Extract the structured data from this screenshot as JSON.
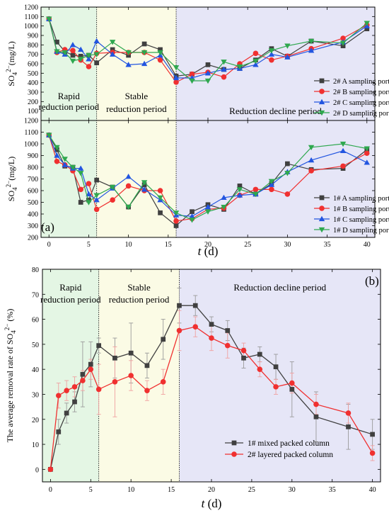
{
  "figure": {
    "a_label": "(a)",
    "b_label": "(b)"
  },
  "chart_data": [
    {
      "id": "top-2",
      "type": "line",
      "ylabel": "SO4 2−(mg/L)",
      "ylim": [
        0,
        1200
      ],
      "ytick_step": 100,
      "xlim": [
        -1,
        41
      ],
      "xticks": [
        0,
        5,
        10,
        15,
        20,
        25,
        30,
        35,
        40
      ],
      "x_tick_labels_shown": false,
      "periods": [
        {
          "label_lines": [
            "Rapid",
            "reduction period"
          ],
          "from": -1,
          "to": 6,
          "color": "#e4f6e4"
        },
        {
          "label_lines": [
            "Stable",
            "reduction period"
          ],
          "from": 6,
          "to": 16,
          "color": "#fbfbe5"
        },
        {
          "label_lines": [
            "Reduction decline period"
          ],
          "from": 16,
          "to": 41,
          "color": "#e6e6f7"
        }
      ],
      "legend_position": "bottom-right",
      "x": [
        0,
        1,
        2,
        3,
        4,
        5,
        6,
        8,
        10,
        12,
        14,
        16,
        18,
        20,
        22,
        24,
        26,
        28,
        30,
        33,
        37,
        40
      ],
      "series": [
        {
          "name": "2# A sampling port",
          "color": "#404040",
          "marker": "square",
          "values": [
            1075,
            830,
            730,
            690,
            680,
            690,
            610,
            750,
            690,
            810,
            750,
            470,
            490,
            590,
            540,
            550,
            640,
            760,
            680,
            840,
            790,
            970
          ]
        },
        {
          "name": "2# B sampling port",
          "color": "#f03030",
          "marker": "circle",
          "values": [
            1075,
            720,
            750,
            740,
            640,
            570,
            710,
            720,
            720,
            720,
            640,
            405,
            490,
            510,
            460,
            600,
            710,
            640,
            680,
            760,
            870,
            1010
          ]
        },
        {
          "name": "2# C sampling port",
          "color": "#2255e0",
          "marker": "triangle-up",
          "values": [
            1075,
            730,
            700,
            800,
            750,
            650,
            840,
            700,
            590,
            600,
            690,
            450,
            450,
            500,
            540,
            550,
            590,
            700,
            670,
            740,
            830,
            1000
          ]
        },
        {
          "name": "2# D sampling port",
          "color": "#2fa84f",
          "marker": "triangle-down",
          "values": [
            1075,
            730,
            720,
            630,
            650,
            690,
            700,
            830,
            720,
            720,
            720,
            560,
            420,
            420,
            620,
            570,
            630,
            740,
            790,
            840,
            820,
            1030
          ]
        }
      ]
    },
    {
      "id": "bottom-1",
      "type": "line",
      "ylabel": "SO4 2−(mg/L)",
      "ylim": [
        200,
        1200
      ],
      "ytick_step": 100,
      "xlim": [
        -1,
        41
      ],
      "xticks": [
        0,
        5,
        10,
        15,
        20,
        25,
        30,
        35,
        40
      ],
      "xlabel": "t (d)",
      "legend_position": "bottom-right",
      "x": [
        0,
        1,
        2,
        3,
        4,
        5,
        6,
        8,
        10,
        12,
        14,
        16,
        18,
        20,
        22,
        24,
        26,
        28,
        30,
        33,
        37,
        40
      ],
      "series": [
        {
          "name": "1# A sampling port",
          "color": "#404040",
          "marker": "square",
          "values": [
            1075,
            950,
            810,
            800,
            500,
            520,
            690,
            630,
            460,
            650,
            410,
            300,
            420,
            480,
            440,
            640,
            570,
            660,
            830,
            780,
            790,
            950
          ]
        },
        {
          "name": "1# B sampling port",
          "color": "#f03030",
          "marker": "circle",
          "values": [
            1075,
            850,
            820,
            770,
            610,
            660,
            440,
            520,
            640,
            600,
            600,
            340,
            360,
            440,
            450,
            560,
            610,
            610,
            570,
            770,
            810,
            920
          ]
        },
        {
          "name": "1# C sampling port",
          "color": "#2255e0",
          "marker": "triangle-up",
          "values": [
            1075,
            900,
            820,
            790,
            790,
            570,
            520,
            620,
            720,
            610,
            520,
            390,
            380,
            460,
            540,
            560,
            570,
            650,
            760,
            860,
            940,
            840
          ]
        },
        {
          "name": "1# D sampling port",
          "color": "#2fa84f",
          "marker": "triangle-down",
          "values": [
            1075,
            970,
            870,
            800,
            750,
            500,
            560,
            630,
            460,
            670,
            540,
            410,
            350,
            420,
            460,
            610,
            570,
            680,
            750,
            970,
            1000,
            960
          ]
        }
      ]
    },
    {
      "id": "panel-b",
      "type": "line",
      "ylabel": "The average removal rate of SO4 2− (%)",
      "xlabel": "t (d)",
      "ylim": [
        -5,
        80
      ],
      "yticks": [
        0,
        10,
        20,
        30,
        40,
        50,
        60,
        70,
        80
      ],
      "xlim": [
        -1,
        41
      ],
      "xticks": [
        0,
        5,
        10,
        15,
        20,
        25,
        30,
        35,
        40
      ],
      "legend_position": "bottom-right",
      "periods": [
        {
          "label_lines": [
            "Rapid",
            "reduction period"
          ],
          "from": -1,
          "to": 6,
          "color": "#e4f6e4"
        },
        {
          "label_lines": [
            "Stable",
            "reduction period"
          ],
          "from": 6,
          "to": 16,
          "color": "#fbfbe5"
        },
        {
          "label_lines": [
            "Reduction decline period"
          ],
          "from": 16,
          "to": 41,
          "color": "#e6e6f7"
        }
      ],
      "x": [
        0,
        1,
        2,
        3,
        4,
        5,
        6,
        8,
        10,
        12,
        14,
        16,
        18,
        20,
        22,
        24,
        26,
        28,
        30,
        33,
        37,
        40
      ],
      "series": [
        {
          "name": "1# mixed packed column",
          "color": "#404040",
          "marker": "square",
          "values": [
            0,
            15,
            22.5,
            27,
            38,
            42,
            49.5,
            44.5,
            46.5,
            41.5,
            52,
            65.5,
            65.5,
            58,
            55.5,
            44.5,
            46,
            41,
            32,
            21,
            17,
            14
          ],
          "errors": [
            0,
            5,
            4,
            4,
            13,
            9,
            3,
            8,
            12,
            5,
            8,
            7,
            4,
            3,
            4,
            4,
            3,
            5,
            11,
            10,
            9,
            6
          ]
        },
        {
          "name": "2# layered packed column",
          "color": "#f03030",
          "marker": "circle",
          "values": [
            0,
            29.5,
            31.5,
            33,
            35.5,
            40,
            32,
            35,
            37.5,
            31.5,
            35,
            55.5,
            57,
            52.5,
            49.5,
            47.5,
            40,
            33,
            34.5,
            26,
            22.5,
            6.5
          ],
          "errors": [
            0,
            5,
            4,
            4,
            4,
            4,
            10,
            14,
            6,
            4,
            5,
            8,
            4,
            5,
            5,
            3,
            3,
            3,
            4,
            4,
            4,
            3
          ]
        }
      ]
    }
  ]
}
